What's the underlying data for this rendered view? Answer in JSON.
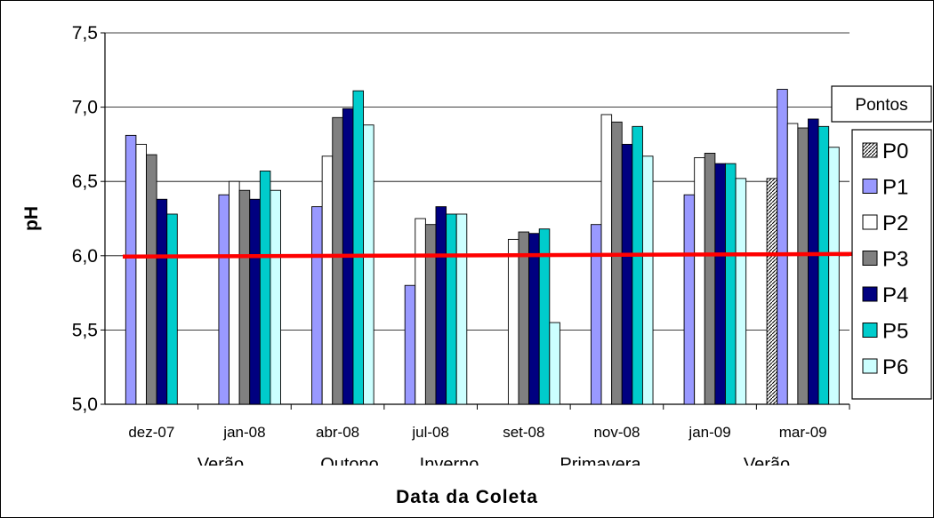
{
  "chart_data": {
    "type": "bar",
    "title": "",
    "xlabel": "Data da Coleta",
    "ylabel": "pH",
    "ylim": [
      5.0,
      7.5
    ],
    "yticks": [
      "5,0",
      "5,5",
      "6,0",
      "6,5",
      "7,0",
      "7,5"
    ],
    "categories": [
      "dez-07",
      "jan-08",
      "abr-08",
      "jul-08",
      "set-08",
      "nov-08",
      "jan-09",
      "mar-09"
    ],
    "seasons": [
      "Verão",
      "Outono",
      "Inverno",
      "Primavera",
      "Verão"
    ],
    "reference_line": {
      "value": 6.0,
      "color": "#ff0000"
    },
    "legend": {
      "title": "Pontos",
      "position": "right"
    },
    "grid": true,
    "series": [
      {
        "name": "P0",
        "color": "#ffffff",
        "pattern": "hatched",
        "values": [
          null,
          null,
          null,
          null,
          null,
          null,
          null,
          6.52
        ]
      },
      {
        "name": "P1",
        "color": "#9999ff",
        "values": [
          6.81,
          6.41,
          6.33,
          5.8,
          null,
          6.21,
          6.41,
          7.12
        ]
      },
      {
        "name": "P2",
        "color": "#ffffff",
        "values": [
          6.75,
          6.5,
          6.67,
          6.25,
          6.11,
          6.95,
          6.66,
          6.89
        ]
      },
      {
        "name": "P3",
        "color": "#808080",
        "values": [
          6.68,
          6.44,
          6.93,
          6.21,
          6.16,
          6.9,
          6.69,
          6.86
        ]
      },
      {
        "name": "P4",
        "color": "#000080",
        "values": [
          6.38,
          6.38,
          6.99,
          6.33,
          6.15,
          6.75,
          6.62,
          6.92
        ]
      },
      {
        "name": "P5",
        "color": "#00cccc",
        "values": [
          6.28,
          6.57,
          7.11,
          6.28,
          6.18,
          6.87,
          6.62,
          6.87
        ]
      },
      {
        "name": "P6",
        "color": "#ccffff",
        "values": [
          null,
          6.44,
          6.88,
          6.28,
          5.55,
          6.67,
          6.52,
          6.73
        ]
      }
    ]
  }
}
